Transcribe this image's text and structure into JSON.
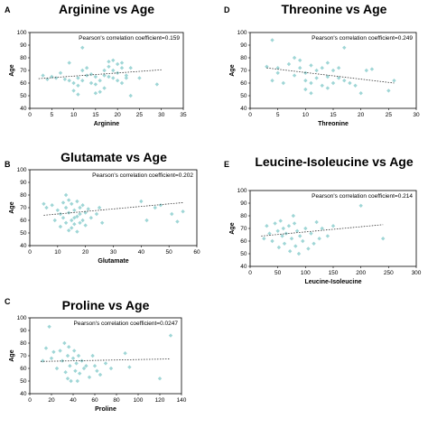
{
  "chart_data": [
    {
      "type": "scatter",
      "panel": "A",
      "title": "Arginine vs Age",
      "xlabel": "Arginine",
      "ylabel": "Age",
      "annotation": "Pearson's correlation coefficient=0.159",
      "xlim": [
        0,
        35
      ],
      "xticks": [
        0,
        5,
        10,
        15,
        20,
        25,
        30,
        35
      ],
      "ylim": [
        40,
        100
      ],
      "yticks": [
        40,
        50,
        60,
        70,
        80,
        90,
        100
      ],
      "grid": false,
      "trendline": "dotted linear",
      "trend": [
        [
          2,
          63.5
        ],
        [
          30,
          70.5
        ]
      ],
      "points": [
        [
          3,
          66
        ],
        [
          4,
          63
        ],
        [
          5,
          65
        ],
        [
          6,
          64
        ],
        [
          7,
          68
        ],
        [
          8,
          63
        ],
        [
          9,
          76
        ],
        [
          9,
          62
        ],
        [
          10,
          60
        ],
        [
          10,
          54
        ],
        [
          11,
          64
        ],
        [
          11,
          58
        ],
        [
          11,
          51
        ],
        [
          12,
          88
        ],
        [
          12,
          70
        ],
        [
          12,
          62
        ],
        [
          13,
          72
        ],
        [
          13,
          66
        ],
        [
          14,
          67
        ],
        [
          14,
          60
        ],
        [
          15,
          65
        ],
        [
          15,
          59
        ],
        [
          15,
          52
        ],
        [
          16,
          62
        ],
        [
          16,
          53
        ],
        [
          17,
          70
        ],
        [
          17,
          66
        ],
        [
          17,
          56
        ],
        [
          18,
          77
        ],
        [
          18,
          73
        ],
        [
          18,
          65
        ],
        [
          19,
          78
        ],
        [
          19,
          70
        ],
        [
          19,
          64
        ],
        [
          20,
          75
        ],
        [
          20,
          68
        ],
        [
          20,
          62
        ],
        [
          21,
          76
        ],
        [
          21,
          72
        ],
        [
          21,
          60
        ],
        [
          22,
          66
        ],
        [
          22,
          64
        ],
        [
          23,
          72
        ],
        [
          23,
          50
        ],
        [
          25,
          64
        ],
        [
          29,
          59
        ]
      ]
    },
    {
      "type": "scatter",
      "panel": "B",
      "title": "Glutamate vs Age",
      "xlabel": "Glutamate",
      "ylabel": "Age",
      "annotation": "Pearson's correlation coefficient=0.202",
      "xlim": [
        0,
        60
      ],
      "xticks": [
        0,
        10,
        20,
        30,
        40,
        50,
        60
      ],
      "ylim": [
        40,
        100
      ],
      "yticks": [
        40,
        50,
        60,
        70,
        80,
        90,
        100
      ],
      "grid": false,
      "trendline": "dotted linear",
      "trend": [
        [
          5,
          64
        ],
        [
          55,
          74
        ]
      ],
      "points": [
        [
          5,
          73
        ],
        [
          6,
          70
        ],
        [
          8,
          72
        ],
        [
          9,
          60
        ],
        [
          10,
          68
        ],
        [
          11,
          65
        ],
        [
          11,
          55
        ],
        [
          12,
          74
        ],
        [
          12,
          62
        ],
        [
          13,
          80
        ],
        [
          13,
          70
        ],
        [
          13,
          58
        ],
        [
          14,
          76
        ],
        [
          14,
          66
        ],
        [
          14,
          52
        ],
        [
          15,
          73
        ],
        [
          15,
          60
        ],
        [
          15,
          54
        ],
        [
          16,
          68
        ],
        [
          16,
          62
        ],
        [
          16,
          57
        ],
        [
          17,
          75
        ],
        [
          17,
          63
        ],
        [
          17,
          51
        ],
        [
          18,
          70
        ],
        [
          18,
          65
        ],
        [
          18,
          58
        ],
        [
          19,
          72
        ],
        [
          19,
          60
        ],
        [
          20,
          66
        ],
        [
          20,
          56
        ],
        [
          21,
          69
        ],
        [
          22,
          62
        ],
        [
          24,
          65
        ],
        [
          25,
          70
        ],
        [
          26,
          58
        ],
        [
          40,
          75
        ],
        [
          42,
          60
        ],
        [
          45,
          70
        ],
        [
          47,
          72
        ],
        [
          51,
          65
        ],
        [
          53,
          59
        ],
        [
          55,
          67
        ]
      ]
    },
    {
      "type": "scatter",
      "panel": "C",
      "title": "Proline vs Age",
      "xlabel": "Proline",
      "ylabel": "Age",
      "annotation": "Pearson's correlation coefficient=0.0247",
      "xlim": [
        0,
        140
      ],
      "xticks": [
        0,
        20,
        40,
        60,
        80,
        100,
        120,
        140
      ],
      "ylim": [
        40,
        100
      ],
      "yticks": [
        40,
        50,
        60,
        70,
        80,
        90,
        100
      ],
      "grid": false,
      "trendline": "dotted linear",
      "trend": [
        [
          10,
          65.5
        ],
        [
          130,
          67.5
        ]
      ],
      "points": [
        [
          12,
          66
        ],
        [
          15,
          76
        ],
        [
          18,
          93
        ],
        [
          20,
          68
        ],
        [
          22,
          73
        ],
        [
          25,
          60
        ],
        [
          28,
          74
        ],
        [
          30,
          66
        ],
        [
          32,
          80
        ],
        [
          33,
          57
        ],
        [
          35,
          70
        ],
        [
          35,
          52
        ],
        [
          36,
          77
        ],
        [
          37,
          62
        ],
        [
          38,
          50
        ],
        [
          40,
          68
        ],
        [
          41,
          74
        ],
        [
          42,
          58
        ],
        [
          43,
          64
        ],
        [
          44,
          50
        ],
        [
          45,
          70
        ],
        [
          46,
          56
        ],
        [
          48,
          66
        ],
        [
          50,
          60
        ],
        [
          52,
          62
        ],
        [
          55,
          53
        ],
        [
          58,
          70
        ],
        [
          60,
          62
        ],
        [
          62,
          58
        ],
        [
          65,
          55
        ],
        [
          70,
          64
        ],
        [
          75,
          60
        ],
        [
          88,
          72
        ],
        [
          92,
          61
        ],
        [
          120,
          52
        ],
        [
          130,
          86
        ]
      ]
    },
    {
      "type": "scatter",
      "panel": "D",
      "title": "Threonine vs Age",
      "xlabel": "Threonine",
      "ylabel": "Age",
      "annotation": "Pearson's correlation coefficient=0.249",
      "xlim": [
        0,
        30
      ],
      "xticks": [
        0,
        5,
        10,
        15,
        20,
        25,
        30
      ],
      "ylim": [
        40,
        100
      ],
      "yticks": [
        40,
        50,
        60,
        70,
        80,
        90,
        100
      ],
      "grid": false,
      "trendline": "dotted linear",
      "trend": [
        [
          3,
          72
        ],
        [
          26,
          60
        ]
      ],
      "points": [
        [
          3,
          73
        ],
        [
          4,
          62
        ],
        [
          4,
          94
        ],
        [
          5,
          72
        ],
        [
          5,
          68
        ],
        [
          6,
          60
        ],
        [
          7,
          75
        ],
        [
          8,
          80
        ],
        [
          8,
          66
        ],
        [
          9,
          78
        ],
        [
          9,
          72
        ],
        [
          10,
          68
        ],
        [
          10,
          62
        ],
        [
          10,
          55
        ],
        [
          11,
          74
        ],
        [
          11,
          60
        ],
        [
          11,
          52
        ],
        [
          12,
          70
        ],
        [
          12,
          64
        ],
        [
          13,
          72
        ],
        [
          13,
          58
        ],
        [
          14,
          76
        ],
        [
          14,
          65
        ],
        [
          14,
          56
        ],
        [
          15,
          70
        ],
        [
          15,
          60
        ],
        [
          16,
          72
        ],
        [
          16,
          64
        ],
        [
          17,
          88
        ],
        [
          17,
          62
        ],
        [
          18,
          60
        ],
        [
          19,
          58
        ],
        [
          20,
          52
        ],
        [
          21,
          70
        ],
        [
          22,
          71
        ],
        [
          25,
          54
        ],
        [
          26,
          62
        ]
      ]
    },
    {
      "type": "scatter",
      "panel": "E",
      "title": "Leucine-Isoleucine vs Age",
      "xlabel": "Leucine-Isoleucine",
      "ylabel": "Age",
      "annotation": "Pearson's correlation coefficient=0.214",
      "xlim": [
        0,
        300
      ],
      "xticks": [
        0,
        50,
        100,
        150,
        200,
        250,
        300
      ],
      "ylim": [
        40,
        100
      ],
      "yticks": [
        40,
        50,
        60,
        70,
        80,
        90,
        100
      ],
      "grid": false,
      "trendline": "dotted linear",
      "trend": [
        [
          20,
          64
        ],
        [
          240,
          73
        ]
      ],
      "points": [
        [
          25,
          62
        ],
        [
          30,
          72
        ],
        [
          35,
          66
        ],
        [
          40,
          60
        ],
        [
          45,
          74
        ],
        [
          50,
          68
        ],
        [
          52,
          55
        ],
        [
          55,
          76
        ],
        [
          58,
          64
        ],
        [
          60,
          70
        ],
        [
          62,
          58
        ],
        [
          65,
          66
        ],
        [
          70,
          72
        ],
        [
          72,
          52
        ],
        [
          75,
          62
        ],
        [
          78,
          80
        ],
        [
          80,
          74
        ],
        [
          82,
          56
        ],
        [
          85,
          68
        ],
        [
          88,
          50
        ],
        [
          90,
          64
        ],
        [
          95,
          60
        ],
        [
          100,
          70
        ],
        [
          105,
          54
        ],
        [
          110,
          66
        ],
        [
          115,
          58
        ],
        [
          120,
          75
        ],
        [
          125,
          62
        ],
        [
          130,
          70
        ],
        [
          140,
          64
        ],
        [
          150,
          72
        ],
        [
          200,
          88
        ],
        [
          240,
          62
        ]
      ]
    }
  ]
}
